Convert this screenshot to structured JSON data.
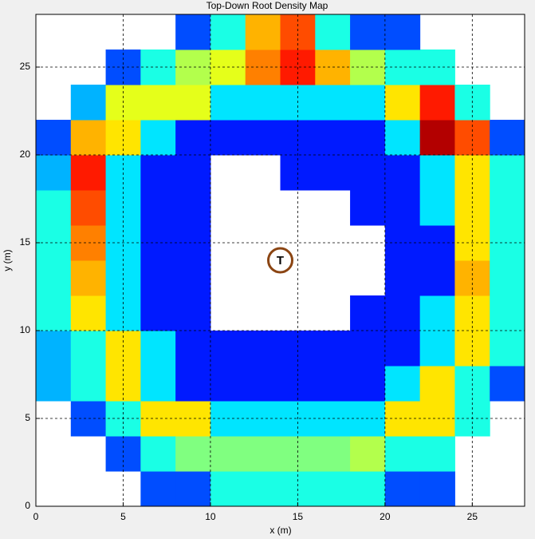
{
  "chart_data": {
    "type": "heatmap",
    "title": "Top-Down Root Density Map",
    "x_label": "x (m)",
    "y_label": "y (m)",
    "colormap": "jet",
    "clim": [
      0,
      1
    ],
    "grid": true,
    "xlim": [
      0,
      28
    ],
    "ylim": [
      0,
      28
    ],
    "xticks": [
      0,
      5,
      10,
      15,
      20,
      25
    ],
    "yticks": [
      0,
      5,
      10,
      15,
      20,
      25
    ],
    "x": [
      1,
      3,
      5,
      7,
      9,
      11,
      13,
      15,
      17,
      19,
      21,
      23,
      25,
      27
    ],
    "y": [
      1,
      3,
      5,
      7,
      9,
      11,
      13,
      15,
      17,
      19,
      21,
      23,
      25,
      27
    ],
    "z": [
      [
        null,
        null,
        null,
        0.2,
        0.2,
        0.4,
        0.4,
        0.4,
        0.4,
        0.4,
        0.2,
        0.2,
        null,
        null
      ],
      [
        null,
        null,
        0.2,
        0.4,
        0.5,
        0.5,
        0.5,
        0.5,
        0.5,
        0.55,
        0.4,
        0.4,
        null,
        null
      ],
      [
        null,
        0.2,
        0.4,
        0.65,
        0.65,
        0.35,
        0.35,
        0.35,
        0.35,
        0.35,
        0.65,
        0.65,
        0.4,
        null
      ],
      [
        0.3,
        0.4,
        0.65,
        0.35,
        0.15,
        0.15,
        0.15,
        0.15,
        0.15,
        0.15,
        0.35,
        0.65,
        0.4,
        0.2
      ],
      [
        0.3,
        0.4,
        0.65,
        0.35,
        0.15,
        0.15,
        0.15,
        0.15,
        0.15,
        0.15,
        0.15,
        0.35,
        0.65,
        0.4
      ],
      [
        0.4,
        0.65,
        0.35,
        0.15,
        0.15,
        null,
        null,
        null,
        null,
        0.15,
        0.15,
        0.35,
        0.65,
        0.4
      ],
      [
        0.4,
        0.7,
        0.35,
        0.15,
        0.15,
        null,
        null,
        null,
        null,
        null,
        0.15,
        0.15,
        0.7,
        0.4
      ],
      [
        0.4,
        0.75,
        0.35,
        0.15,
        0.15,
        null,
        null,
        null,
        null,
        null,
        0.15,
        0.15,
        0.65,
        0.4
      ],
      [
        0.4,
        0.8,
        0.35,
        0.15,
        0.15,
        null,
        null,
        null,
        null,
        0.15,
        0.15,
        0.35,
        0.65,
        0.4
      ],
      [
        0.3,
        0.85,
        0.35,
        0.15,
        0.15,
        null,
        null,
        0.15,
        0.15,
        0.15,
        0.15,
        0.35,
        0.65,
        0.4
      ],
      [
        0.2,
        0.7,
        0.65,
        0.35,
        0.15,
        0.15,
        0.15,
        0.15,
        0.15,
        0.15,
        0.35,
        0.95,
        0.8,
        0.2
      ],
      [
        null,
        0.3,
        0.6,
        0.6,
        0.6,
        0.35,
        0.35,
        0.35,
        0.35,
        0.35,
        0.65,
        0.85,
        0.4,
        null
      ],
      [
        null,
        null,
        0.2,
        0.4,
        0.55,
        0.6,
        0.75,
        0.85,
        0.7,
        0.55,
        0.4,
        0.4,
        null,
        null
      ],
      [
        null,
        null,
        null,
        null,
        0.2,
        0.4,
        0.7,
        0.8,
        0.4,
        0.2,
        0.2,
        null,
        null,
        null
      ]
    ],
    "marker": {
      "x": 14,
      "y": 14,
      "label": "T",
      "color": "#8b4513"
    }
  }
}
